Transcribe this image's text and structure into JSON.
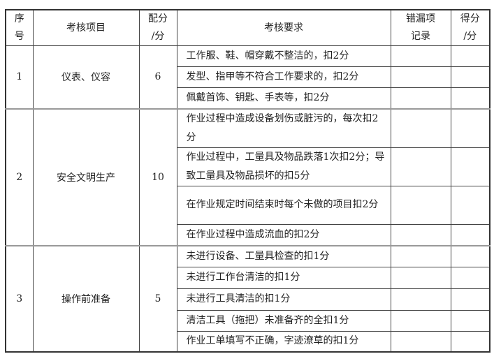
{
  "headers": {
    "index": [
      "序",
      "号"
    ],
    "item": "考核项目",
    "points": [
      "配分",
      "/分"
    ],
    "requirements": "考核要求",
    "errors": [
      "错漏项",
      "记录"
    ],
    "score": [
      "得分",
      "/分"
    ]
  },
  "groups": [
    {
      "index": "1",
      "item": "仪表、仪容",
      "points": "6",
      "requirements": [
        "工作服、鞋、帽穿戴不整洁的，扣2分",
        "发型、指甲等不符合工作要求的，扣2分",
        "佩戴首饰、钥匙、手表等，扣2分"
      ]
    },
    {
      "index": "2",
      "item": "安全文明生产",
      "points": "10",
      "requirements": [
        "作业过程中造成设备划伤或脏污的，每次扣2分",
        "作业过程中，工量具及物品跌落1次扣2分；导致工量具及物品损坏的扣5分",
        "在作业规定时间结束时每个未做的项目扣2分",
        "在作业过程中造成流血的扣2分"
      ]
    },
    {
      "index": "3",
      "item": "操作前准备",
      "points": "5",
      "requirements": [
        "未进行设备、工量具检查的扣1分",
        "未进行工作台清洁的扣1分",
        "未进行工具清洁的扣1分",
        "清洁工具（拖把）未准备齐的全扣1分",
        "作业工单填写不正确，字迹潦草的扣1分"
      ]
    }
  ]
}
